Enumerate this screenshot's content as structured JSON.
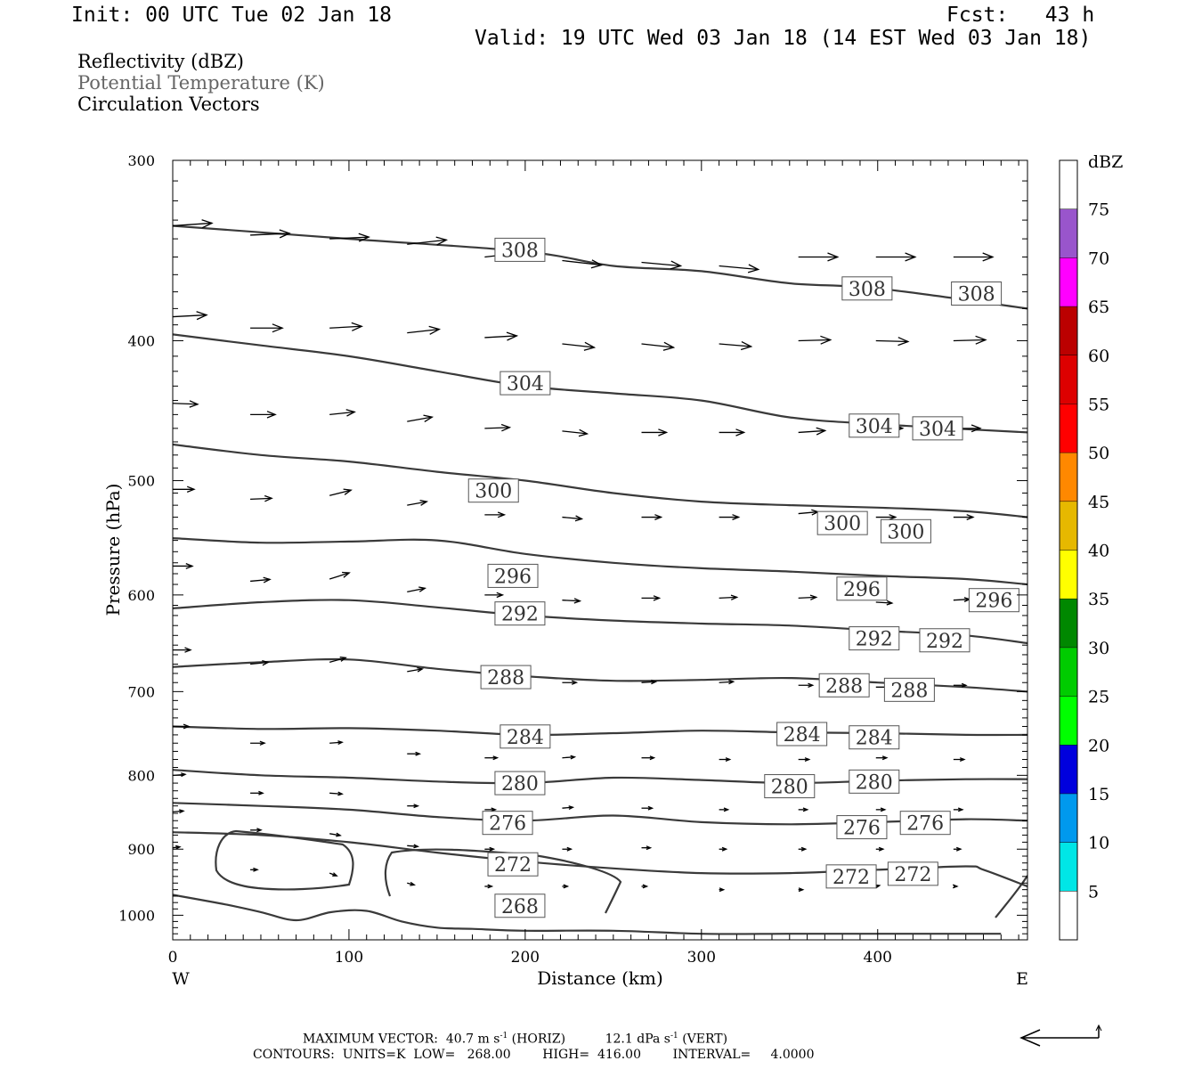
{
  "header": {
    "init": "Init: 00 UTC Tue 02 Jan 18",
    "fcst": "Fcst:   43 h",
    "valid": "Valid: 19 UTC Wed 03 Jan 18 (14 EST Wed 03 Jan 18)"
  },
  "fields": {
    "reflectivity": "Reflectivity (dBZ)",
    "potential_temperature": "Potential Temperature (K)",
    "circulation": "Circulation Vectors"
  },
  "footer": {
    "max_vector_label": "MAXIMUM VECTOR:",
    "max_vector_horiz": "40.7 m s",
    "horiz_tag": "(HORIZ)",
    "max_vector_vert": "12.1 dPa s",
    "vert_tag": "(VERT)",
    "exp": "-1",
    "contours": "CONTOURS:  UNITS=K  LOW=   268.00        HIGH=  416.00        INTERVAL=     4.0000"
  },
  "colors": {
    "contour": "#3a3a3a",
    "vector": "#000000"
  },
  "chart_data": {
    "type": "line",
    "title": "",
    "xlabel": "Distance (km)",
    "ylabel": "Pressure (hPa)",
    "xlim": [
      0,
      485
    ],
    "ylim": [
      1040,
      300
    ],
    "y_scale": "log",
    "x_ticks": [
      0,
      100,
      200,
      300,
      400
    ],
    "x_tick_labels": [
      "0",
      "100",
      "200",
      "300",
      "400"
    ],
    "x_end_labels": {
      "left": "W",
      "right": "E"
    },
    "y_ticks": [
      300,
      400,
      500,
      600,
      700,
      800,
      900,
      1000
    ],
    "y_tick_labels": [
      "300",
      "400",
      "500",
      "600",
      "700",
      "800",
      "900",
      "1000"
    ],
    "colorbar": {
      "title": "dBZ",
      "labels": [
        "5",
        "10",
        "15",
        "20",
        "25",
        "30",
        "35",
        "40",
        "45",
        "50",
        "55",
        "60",
        "65",
        "70",
        "75"
      ],
      "colors": [
        "#ffffff",
        "#00e6e6",
        "#0099ee",
        "#0000dd",
        "#00ff00",
        "#00cc00",
        "#008800",
        "#ffff00",
        "#e6b800",
        "#ff8800",
        "#ff0000",
        "#dd0000",
        "#bb0000",
        "#ff00ff",
        "#9955cc",
        "#ffffff"
      ]
    },
    "contours": [
      {
        "theta": 308,
        "x": [
          0,
          100,
          200,
          250,
          300,
          350,
          400,
          485
        ],
        "p": [
          333,
          340,
          347,
          355,
          358,
          365,
          368,
          380
        ]
      },
      {
        "theta": 304,
        "x": [
          0,
          50,
          100,
          150,
          200,
          250,
          300,
          350,
          400,
          485
        ],
        "p": [
          396,
          403,
          410,
          420,
          430,
          435,
          440,
          452,
          457,
          463
        ]
      },
      {
        "theta": 300,
        "x": [
          0,
          50,
          100,
          150,
          200,
          250,
          300,
          350,
          400,
          450,
          485
        ],
        "p": [
          472,
          480,
          485,
          493,
          500,
          510,
          517,
          520,
          522,
          525,
          530
        ]
      },
      {
        "theta": 296,
        "x": [
          0,
          50,
          100,
          150,
          200,
          250,
          300,
          350,
          400,
          450,
          485
        ],
        "p": [
          548,
          552,
          551,
          550,
          562,
          570,
          575,
          578,
          582,
          585,
          590
        ]
      },
      {
        "theta": 292,
        "x": [
          0,
          50,
          100,
          150,
          200,
          250,
          300,
          350,
          400,
          450,
          485
        ],
        "p": [
          613,
          607,
          605,
          612,
          620,
          625,
          628,
          630,
          635,
          640,
          648
        ]
      },
      {
        "theta": 288,
        "x": [
          0,
          50,
          100,
          150,
          200,
          250,
          300,
          350,
          400,
          450,
          485
        ],
        "p": [
          673,
          668,
          665,
          675,
          683,
          688,
          687,
          685,
          690,
          695,
          700
        ]
      },
      {
        "theta": 284,
        "x": [
          0,
          50,
          100,
          150,
          200,
          250,
          300,
          350,
          400,
          450,
          485
        ],
        "p": [
          740,
          743,
          742,
          745,
          750,
          748,
          745,
          747,
          748,
          750,
          750
        ]
      },
      {
        "theta": 280,
        "x": [
          0,
          50,
          100,
          150,
          200,
          250,
          300,
          350,
          400,
          450,
          485
        ],
        "p": [
          793,
          800,
          803,
          808,
          810,
          803,
          806,
          810,
          807,
          805,
          805
        ]
      },
      {
        "theta": 276,
        "x": [
          0,
          50,
          100,
          150,
          200,
          250,
          300,
          350,
          400,
          450,
          485
        ],
        "p": [
          836,
          840,
          845,
          855,
          860,
          853,
          862,
          865,
          862,
          858,
          860
        ]
      },
      {
        "theta": 272,
        "x": [
          0,
          50,
          100,
          150,
          200,
          250,
          300,
          350,
          400,
          450,
          460,
          485
        ],
        "p": [
          876,
          880,
          890,
          905,
          918,
          928,
          935,
          935,
          930,
          925,
          930,
          955
        ]
      },
      {
        "theta": 268,
        "x": [
          0,
          30,
          50,
          70,
          90,
          110,
          130,
          150,
          170,
          200,
          250,
          300,
          350,
          400,
          470
        ],
        "p": [
          968,
          983,
          995,
          1008,
          995,
          993,
          1010,
          1020,
          1022,
          1025,
          1025,
          1030,
          1030,
          1030,
          1030
        ]
      }
    ],
    "contour_labels": [
      {
        "theta": 308,
        "positions": [
          [
            197,
            346
          ],
          [
            394,
            368
          ],
          [
            456,
            371
          ]
        ]
      },
      {
        "theta": 304,
        "positions": [
          [
            200,
            428
          ],
          [
            398,
            458
          ],
          [
            434,
            460
          ]
        ]
      },
      {
        "theta": 300,
        "positions": [
          [
            182,
            508
          ],
          [
            380,
            535
          ],
          [
            416,
            542
          ]
        ]
      },
      {
        "theta": 296,
        "positions": [
          [
            193,
            582
          ],
          [
            391,
            594
          ],
          [
            466,
            605
          ]
        ]
      },
      {
        "theta": 292,
        "positions": [
          [
            197,
            618
          ],
          [
            398,
            643
          ],
          [
            438,
            645
          ]
        ]
      },
      {
        "theta": 288,
        "positions": [
          [
            189,
            684
          ],
          [
            381,
            693
          ],
          [
            418,
            698
          ]
        ]
      },
      {
        "theta": 284,
        "positions": [
          [
            200,
            752
          ],
          [
            357,
            749
          ],
          [
            398,
            753
          ]
        ]
      },
      {
        "theta": 280,
        "positions": [
          [
            197,
            810
          ],
          [
            350,
            814
          ],
          [
            398,
            808
          ]
        ]
      },
      {
        "theta": 276,
        "positions": [
          [
            190,
            863
          ],
          [
            391,
            869
          ],
          [
            427,
            863
          ]
        ]
      },
      {
        "theta": 272,
        "positions": [
          [
            193,
            922
          ],
          [
            385,
            940
          ],
          [
            420,
            936
          ]
        ]
      },
      {
        "theta": 268,
        "positions": [
          [
            197,
            985
          ]
        ]
      }
    ],
    "vectors": [
      {
        "x": 0,
        "p": 333,
        "u": 44,
        "v": 3
      },
      {
        "x": 44,
        "p": 338,
        "u": 44,
        "v": 2
      },
      {
        "x": 89,
        "p": 340,
        "u": 44,
        "v": 2
      },
      {
        "x": 133,
        "p": 343,
        "u": 44,
        "v": 5
      },
      {
        "x": 177,
        "p": 350,
        "u": 44,
        "v": 5
      },
      {
        "x": 221,
        "p": 352,
        "u": 44,
        "v": -5
      },
      {
        "x": 266,
        "p": 353,
        "u": 44,
        "v": -4
      },
      {
        "x": 310,
        "p": 355,
        "u": 44,
        "v": -4
      },
      {
        "x": 355,
        "p": 350,
        "u": 44,
        "v": 0
      },
      {
        "x": 399,
        "p": 350,
        "u": 44,
        "v": 0
      },
      {
        "x": 443,
        "p": 350,
        "u": 44,
        "v": 0
      },
      {
        "x": 0,
        "p": 385,
        "u": 38,
        "v": 2
      },
      {
        "x": 44,
        "p": 392,
        "u": 36,
        "v": 0
      },
      {
        "x": 89,
        "p": 392,
        "u": 36,
        "v": 2
      },
      {
        "x": 133,
        "p": 395,
        "u": 36,
        "v": 4
      },
      {
        "x": 177,
        "p": 398,
        "u": 36,
        "v": 2
      },
      {
        "x": 221,
        "p": 402,
        "u": 36,
        "v": -4
      },
      {
        "x": 266,
        "p": 402,
        "u": 36,
        "v": -4
      },
      {
        "x": 310,
        "p": 402,
        "u": 36,
        "v": -3
      },
      {
        "x": 355,
        "p": 400,
        "u": 36,
        "v": 1
      },
      {
        "x": 399,
        "p": 400,
        "u": 36,
        "v": -1
      },
      {
        "x": 443,
        "p": 400,
        "u": 36,
        "v": 1
      },
      {
        "x": 0,
        "p": 442,
        "u": 28,
        "v": -1
      },
      {
        "x": 44,
        "p": 450,
        "u": 28,
        "v": 0
      },
      {
        "x": 89,
        "p": 450,
        "u": 28,
        "v": 3
      },
      {
        "x": 133,
        "p": 455,
        "u": 28,
        "v": 5
      },
      {
        "x": 177,
        "p": 460,
        "u": 28,
        "v": 1
      },
      {
        "x": 221,
        "p": 462,
        "u": 28,
        "v": -3
      },
      {
        "x": 266,
        "p": 463,
        "u": 28,
        "v": 0
      },
      {
        "x": 310,
        "p": 463,
        "u": 28,
        "v": 0
      },
      {
        "x": 355,
        "p": 463,
        "u": 30,
        "v": 2
      },
      {
        "x": 399,
        "p": 460,
        "u": 30,
        "v": 0
      },
      {
        "x": 443,
        "p": 460,
        "u": 30,
        "v": 0
      },
      {
        "x": 0,
        "p": 507,
        "u": 24,
        "v": 0
      },
      {
        "x": 44,
        "p": 515,
        "u": 24,
        "v": 1
      },
      {
        "x": 89,
        "p": 512,
        "u": 24,
        "v": 6
      },
      {
        "x": 133,
        "p": 520,
        "u": 22,
        "v": 4
      },
      {
        "x": 177,
        "p": 528,
        "u": 22,
        "v": 0
      },
      {
        "x": 221,
        "p": 530,
        "u": 22,
        "v": -2
      },
      {
        "x": 266,
        "p": 530,
        "u": 22,
        "v": 0
      },
      {
        "x": 310,
        "p": 530,
        "u": 22,
        "v": 0
      },
      {
        "x": 355,
        "p": 527,
        "u": 22,
        "v": 2
      },
      {
        "x": 399,
        "p": 530,
        "u": 22,
        "v": 0
      },
      {
        "x": 443,
        "p": 530,
        "u": 22,
        "v": 0
      },
      {
        "x": 0,
        "p": 573,
        "u": 22,
        "v": 0
      },
      {
        "x": 44,
        "p": 587,
        "u": 22,
        "v": 2
      },
      {
        "x": 89,
        "p": 585,
        "u": 22,
        "v": 7
      },
      {
        "x": 133,
        "p": 597,
        "u": 20,
        "v": 4
      },
      {
        "x": 177,
        "p": 600,
        "u": 20,
        "v": 0
      },
      {
        "x": 221,
        "p": 605,
        "u": 20,
        "v": -1
      },
      {
        "x": 266,
        "p": 603,
        "u": 20,
        "v": 0
      },
      {
        "x": 310,
        "p": 603,
        "u": 20,
        "v": 1
      },
      {
        "x": 355,
        "p": 603,
        "u": 20,
        "v": 1
      },
      {
        "x": 399,
        "p": 607,
        "u": 18,
        "v": -1
      },
      {
        "x": 443,
        "p": 605,
        "u": 18,
        "v": 1
      },
      {
        "x": 0,
        "p": 655,
        "u": 20,
        "v": 0
      },
      {
        "x": 44,
        "p": 670,
        "u": 20,
        "v": 2
      },
      {
        "x": 89,
        "p": 668,
        "u": 18,
        "v": 5
      },
      {
        "x": 133,
        "p": 678,
        "u": 17,
        "v": 3
      },
      {
        "x": 177,
        "p": 688,
        "u": 16,
        "v": 0
      },
      {
        "x": 221,
        "p": 690,
        "u": 16,
        "v": 0
      },
      {
        "x": 266,
        "p": 690,
        "u": 16,
        "v": 1
      },
      {
        "x": 310,
        "p": 690,
        "u": 16,
        "v": 1
      },
      {
        "x": 355,
        "p": 693,
        "u": 16,
        "v": 0
      },
      {
        "x": 399,
        "p": 695,
        "u": 16,
        "v": 0
      },
      {
        "x": 443,
        "p": 693,
        "u": 14,
        "v": 0
      },
      {
        "x": 0,
        "p": 740,
        "u": 18,
        "v": 0
      },
      {
        "x": 44,
        "p": 760,
        "u": 16,
        "v": 0
      },
      {
        "x": 89,
        "p": 760,
        "u": 14,
        "v": 1
      },
      {
        "x": 133,
        "p": 773,
        "u": 14,
        "v": 0
      },
      {
        "x": 177,
        "p": 778,
        "u": 14,
        "v": 0
      },
      {
        "x": 221,
        "p": 778,
        "u": 14,
        "v": 1
      },
      {
        "x": 266,
        "p": 778,
        "u": 14,
        "v": 0
      },
      {
        "x": 310,
        "p": 780,
        "u": 12,
        "v": 0
      },
      {
        "x": 355,
        "p": 780,
        "u": 12,
        "v": 0
      },
      {
        "x": 399,
        "p": 778,
        "u": 12,
        "v": 0
      },
      {
        "x": 443,
        "p": 780,
        "u": 12,
        "v": 0
      },
      {
        "x": 0,
        "p": 800,
        "u": 14,
        "v": 1
      },
      {
        "x": 44,
        "p": 823,
        "u": 14,
        "v": 0
      },
      {
        "x": 89,
        "p": 823,
        "u": 14,
        "v": -1
      },
      {
        "x": 133,
        "p": 840,
        "u": 12,
        "v": 0
      },
      {
        "x": 177,
        "p": 845,
        "u": 12,
        "v": 0
      },
      {
        "x": 221,
        "p": 843,
        "u": 12,
        "v": 1
      },
      {
        "x": 266,
        "p": 843,
        "u": 12,
        "v": 0
      },
      {
        "x": 310,
        "p": 845,
        "u": 10,
        "v": 0
      },
      {
        "x": 355,
        "p": 845,
        "u": 10,
        "v": 0
      },
      {
        "x": 399,
        "p": 845,
        "u": 10,
        "v": 0
      },
      {
        "x": 443,
        "p": 845,
        "u": 10,
        "v": 0
      },
      {
        "x": 0,
        "p": 848,
        "u": 12,
        "v": 1
      },
      {
        "x": 44,
        "p": 873,
        "u": 12,
        "v": 0
      },
      {
        "x": 89,
        "p": 878,
        "u": 12,
        "v": -2
      },
      {
        "x": 133,
        "p": 895,
        "u": 12,
        "v": -1
      },
      {
        "x": 177,
        "p": 900,
        "u": 10,
        "v": 0
      },
      {
        "x": 221,
        "p": 900,
        "u": 10,
        "v": 0
      },
      {
        "x": 266,
        "p": 898,
        "u": 10,
        "v": 0
      },
      {
        "x": 310,
        "p": 900,
        "u": 8,
        "v": 0
      },
      {
        "x": 355,
        "p": 900,
        "u": 8,
        "v": 0
      },
      {
        "x": 399,
        "p": 900,
        "u": 8,
        "v": 0
      },
      {
        "x": 443,
        "p": 900,
        "u": 8,
        "v": 0
      },
      {
        "x": 0,
        "p": 898,
        "u": 8,
        "v": 1
      },
      {
        "x": 44,
        "p": 930,
        "u": 8,
        "v": 0
      },
      {
        "x": 89,
        "p": 935,
        "u": 8,
        "v": -3
      },
      {
        "x": 133,
        "p": 950,
        "u": 8,
        "v": -2
      },
      {
        "x": 177,
        "p": 955,
        "u": 8,
        "v": 0
      },
      {
        "x": 221,
        "p": 955,
        "u": 6,
        "v": 0
      },
      {
        "x": 266,
        "p": 955,
        "u": 6,
        "v": 0
      },
      {
        "x": 310,
        "p": 960,
        "u": 5,
        "v": 0
      },
      {
        "x": 355,
        "p": 960,
        "u": 5,
        "v": 0
      },
      {
        "x": 399,
        "p": 955,
        "u": 4,
        "v": 1
      },
      {
        "x": 443,
        "p": 955,
        "u": 4,
        "v": 0
      }
    ]
  }
}
